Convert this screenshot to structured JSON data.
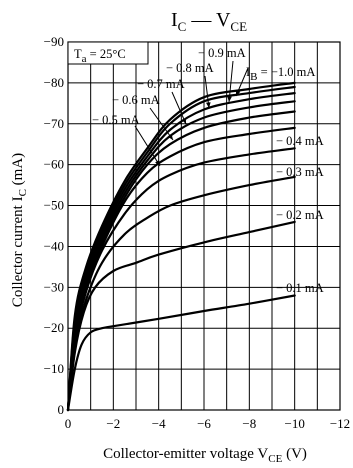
{
  "chart_data": {
    "type": "line",
    "title": "I_C — V_CE",
    "title_parts": {
      "main1": "I",
      "sub1": "C",
      "dash": " — ",
      "main2": "V",
      "sub2": "CE"
    },
    "xlabel": "Collector-emitter voltage  V_CE  (V)",
    "xlabel_parts": {
      "pre": "Collector-emitter voltage  V",
      "sub": "CE",
      "post": "  (V)"
    },
    "ylabel": "Collector current  I_C  (mA)",
    "ylabel_parts": {
      "pre": "Collector current  I",
      "sub": "C",
      "post": "  (mA)"
    },
    "condition": {
      "pre": "T",
      "sub": "a",
      "post": " = 25°C"
    },
    "xlim": [
      0,
      -12
    ],
    "ylim": [
      0,
      -90
    ],
    "x_ticks": [
      0,
      -2,
      -4,
      -6,
      -8,
      -10,
      -12
    ],
    "x_tick_labels": [
      "0",
      "−2",
      "−4",
      "−6",
      "−8",
      "−10",
      "−12"
    ],
    "y_ticks": [
      0,
      -10,
      -20,
      -30,
      -40,
      -50,
      -60,
      -70,
      -80,
      -90
    ],
    "y_tick_labels": [
      "0",
      "−10",
      "−20",
      "−30",
      "−40",
      "−50",
      "−60",
      "−70",
      "−80",
      "−90"
    ],
    "grid": true,
    "series": [
      {
        "name": "− 0.1 mA",
        "label": "− 0.1 mA",
        "x": [
          0,
          -0.3,
          -0.6,
          -1.0,
          -1.5,
          -2,
          -4,
          -6,
          -8,
          -10
        ],
        "y": [
          0,
          -10,
          -16,
          -19,
          -20,
          -20.5,
          -22.3,
          -24.2,
          -26,
          -28
        ]
      },
      {
        "name": "− 0.2 mA",
        "label": "− 0.2 mA",
        "x": [
          0,
          -0.3,
          -0.7,
          -1.2,
          -2,
          -3,
          -4,
          -6,
          -8,
          -10
        ],
        "y": [
          0,
          -14,
          -24,
          -30,
          -34,
          -36,
          -38,
          -41,
          -43.5,
          -46
        ]
      },
      {
        "name": "− 0.3 mA",
        "label": "− 0.3 mA",
        "x": [
          0,
          -0.3,
          -0.8,
          -1.5,
          -2.5,
          -3.5,
          -4.5,
          -6,
          -8,
          -10
        ],
        "y": [
          0,
          -16,
          -27,
          -36,
          -43,
          -47,
          -50,
          -52.5,
          -55,
          -57
        ]
      },
      {
        "name": "− 0.4 mA",
        "label": "− 0.4 mA",
        "x": [
          0,
          -0.3,
          -0.8,
          -1.5,
          -2.5,
          -3.5,
          -4.5,
          -6,
          -8,
          -10
        ],
        "y": [
          0,
          -17,
          -29,
          -39,
          -48,
          -54,
          -57.5,
          -60.5,
          -62.5,
          -64
        ]
      },
      {
        "name": "− 0.5 mA",
        "label": "− 0.5 mA",
        "x": [
          0,
          -0.3,
          -0.8,
          -1.5,
          -2.5,
          -3.5,
          -4.5,
          -6,
          -8,
          -10
        ],
        "y": [
          0,
          -18,
          -30,
          -40,
          -51,
          -58,
          -62,
          -65.5,
          -67.5,
          -69
        ]
      },
      {
        "name": "− 0.6 mA",
        "label": "− 0.6 mA",
        "x": [
          0,
          -0.3,
          -0.8,
          -1.5,
          -2.5,
          -3.5,
          -4.5,
          -6,
          -8,
          -10
        ],
        "y": [
          0,
          -19,
          -31,
          -41,
          -52,
          -60,
          -65,
          -69,
          -71.5,
          -73
        ]
      },
      {
        "name": "− 0.7 mA",
        "label": "− 0.7 mA",
        "x": [
          0,
          -0.3,
          -0.8,
          -1.5,
          -2.5,
          -3.5,
          -4.5,
          -6,
          -8,
          -10
        ],
        "y": [
          0,
          -20,
          -32,
          -42,
          -53,
          -61,
          -67,
          -71.5,
          -74,
          -75.5
        ]
      },
      {
        "name": "− 0.8 mA",
        "label": "− 0.8 mA",
        "x": [
          0,
          -0.3,
          -0.8,
          -1.5,
          -2.5,
          -3.5,
          -4.5,
          -6,
          -8,
          -10
        ],
        "y": [
          0,
          -21,
          -33,
          -43,
          -54,
          -62,
          -68.5,
          -73.5,
          -76,
          -77.5
        ]
      },
      {
        "name": "− 0.9 mA",
        "label": "− 0.9 mA",
        "x": [
          0,
          -0.3,
          -0.8,
          -1.5,
          -2.5,
          -3.5,
          -4.5,
          -6,
          -8,
          -10
        ],
        "y": [
          0,
          -22,
          -34,
          -44,
          -55,
          -63,
          -70,
          -75.5,
          -77.5,
          -79
        ]
      },
      {
        "name": "I_B = −1.0 mA",
        "label": "− 1.0 mA",
        "x": [
          0,
          -0.3,
          -0.8,
          -1.5,
          -2.5,
          -3.5,
          -4.5,
          -6,
          -8,
          -10
        ],
        "y": [
          0,
          -23,
          -35,
          -45,
          -56,
          -64,
          -71,
          -76.5,
          -78.5,
          -80
        ]
      }
    ]
  }
}
